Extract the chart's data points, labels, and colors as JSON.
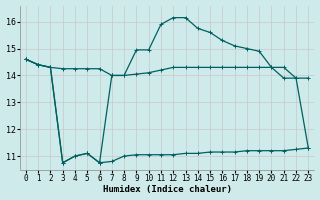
{
  "xlabel": "Humidex (Indice chaleur)",
  "background_color": "#ceeaea",
  "grid_color": "#b8d8d8",
  "line_color": "#006060",
  "xlim": [
    -0.5,
    23.5
  ],
  "ylim": [
    10.5,
    16.6
  ],
  "yticks": [
    11,
    12,
    13,
    14,
    15,
    16
  ],
  "xticks": [
    0,
    1,
    2,
    3,
    4,
    5,
    6,
    7,
    8,
    9,
    10,
    11,
    12,
    13,
    14,
    15,
    16,
    17,
    18,
    19,
    20,
    21,
    22,
    23
  ],
  "series1_x": [
    0,
    1,
    2,
    3,
    4,
    5,
    6,
    7,
    8,
    9,
    10,
    11,
    12,
    13,
    14,
    15,
    16,
    17,
    18,
    19,
    20,
    21,
    22,
    23
  ],
  "series1_y": [
    14.6,
    14.4,
    14.3,
    14.25,
    14.25,
    14.25,
    14.25,
    14.0,
    14.0,
    14.05,
    14.1,
    14.2,
    14.3,
    14.3,
    14.3,
    14.3,
    14.3,
    14.3,
    14.3,
    14.3,
    14.3,
    14.3,
    13.9,
    13.9
  ],
  "series2_x": [
    0,
    1,
    2,
    3,
    4,
    5,
    6,
    7,
    8,
    9,
    10,
    11,
    12,
    13,
    14,
    15,
    16,
    17,
    18,
    19,
    20,
    21,
    22,
    23
  ],
  "series2_y": [
    14.6,
    14.4,
    14.3,
    10.75,
    11.0,
    11.1,
    10.75,
    10.8,
    11.0,
    11.05,
    11.05,
    11.05,
    11.05,
    11.1,
    11.1,
    11.15,
    11.15,
    11.15,
    11.2,
    11.2,
    11.2,
    11.2,
    11.25,
    11.3
  ],
  "series3_x": [
    0,
    1,
    2,
    3,
    4,
    5,
    6,
    7,
    8,
    9,
    10,
    11,
    12,
    13,
    14,
    15,
    16,
    17,
    18,
    19,
    20,
    21,
    22,
    23
  ],
  "series3_y": [
    14.6,
    14.4,
    14.3,
    10.75,
    11.0,
    11.1,
    10.75,
    14.0,
    14.0,
    14.95,
    14.95,
    15.9,
    16.15,
    16.15,
    15.75,
    15.6,
    15.3,
    15.1,
    15.0,
    14.9,
    14.3,
    13.9,
    13.9,
    11.3
  ],
  "markersize": 3.0,
  "linewidth": 0.9
}
